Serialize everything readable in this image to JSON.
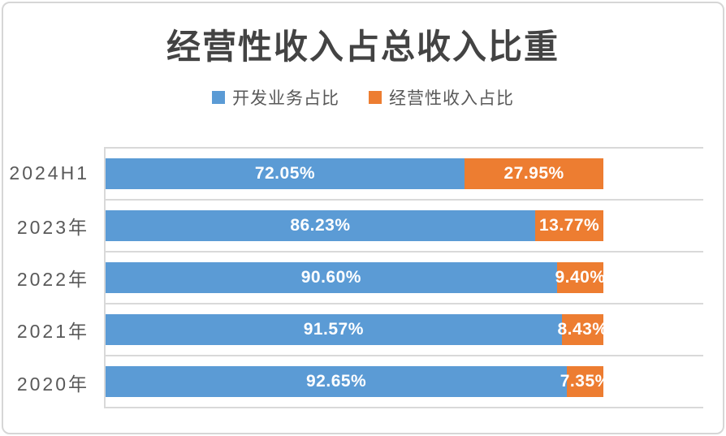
{
  "title": "经营性收入占总收入比重",
  "legend": [
    {
      "label": "开发业务占比",
      "color": "#5B9BD5"
    },
    {
      "label": "经营性收入占比",
      "color": "#ED7D31"
    }
  ],
  "chart_data": {
    "type": "bar",
    "orientation": "horizontal",
    "stacked": true,
    "title": "经营性收入占总收入比重",
    "categories": [
      "2024H1",
      "2023年",
      "2022年",
      "2021年",
      "2020年"
    ],
    "series": [
      {
        "name": "开发业务占比",
        "color": "#5B9BD5",
        "values": [
          72.05,
          86.23,
          90.6,
          91.57,
          92.65
        ],
        "labels": [
          "72.05%",
          "86.23%",
          "90.60%",
          "91.57%",
          "92.65%"
        ]
      },
      {
        "name": "经营性收入占比",
        "color": "#ED7D31",
        "values": [
          27.95,
          13.77,
          9.4,
          8.43,
          7.35
        ],
        "labels": [
          "27.95%",
          "13.77%",
          "9.40%",
          "8.43%",
          "7.35%"
        ]
      }
    ],
    "xlim": [
      0,
      120
    ],
    "value_unit": "%",
    "grid": "horizontal-row-separators",
    "legend_position": "top",
    "data_labels": "inside-center-white"
  }
}
